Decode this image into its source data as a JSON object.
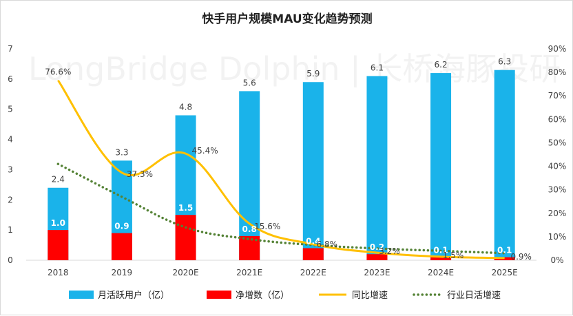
{
  "chart_data": {
    "type": "bar",
    "title": "快手用户规模MAU变化趋势预测",
    "watermark": "LongBridge Dolphin | 长桥海豚投研",
    "categories": [
      "2018",
      "2019",
      "2020E",
      "2021E",
      "2022E",
      "2023E",
      "2024E",
      "2025E"
    ],
    "y_left": {
      "min": 0,
      "max": 7,
      "ticks": [
        "0",
        "1",
        "2",
        "3",
        "4",
        "5",
        "6",
        "7"
      ]
    },
    "y_right": {
      "min": 0,
      "max": 90,
      "ticks": [
        "0%",
        "10%",
        "20%",
        "30%",
        "40%",
        "50%",
        "60%",
        "70%",
        "80%",
        "90%"
      ]
    },
    "series": [
      {
        "name": "月活跃用户（亿）",
        "type": "bar",
        "color": "#1ab3ea",
        "values": [
          2.4,
          3.3,
          4.8,
          5.6,
          5.9,
          6.1,
          6.2,
          6.3
        ],
        "labels": [
          "2.4",
          "3.3",
          "4.8",
          "5.6",
          "5.9",
          "6.1",
          "6.2",
          "6.3"
        ]
      },
      {
        "name": "净增数（亿）",
        "type": "bar",
        "color": "#ff0000",
        "values": [
          1.0,
          0.9,
          1.5,
          0.8,
          0.4,
          0.2,
          0.1,
          0.1
        ],
        "labels": [
          "1.0",
          "0.9",
          "1.5",
          "0.8",
          "0.4",
          "0.2",
          "0.1",
          "0.1"
        ]
      },
      {
        "name": "同比增速",
        "type": "line",
        "axis": "right",
        "color": "#ffc000",
        "values": [
          76.6,
          37.3,
          45.4,
          15.6,
          6.8,
          3.2,
          1.5,
          0.9
        ],
        "labels": [
          "76.6%",
          "37.3%",
          "45.4%",
          "15.6%",
          "6.8%",
          "3.2%",
          "1.5%",
          "0.9%"
        ]
      },
      {
        "name": "行业日活增速",
        "type": "dotted-line",
        "axis": "right",
        "color": "#548235",
        "values": [
          41,
          27,
          14,
          9,
          6.5,
          5,
          4,
          3
        ]
      }
    ]
  }
}
